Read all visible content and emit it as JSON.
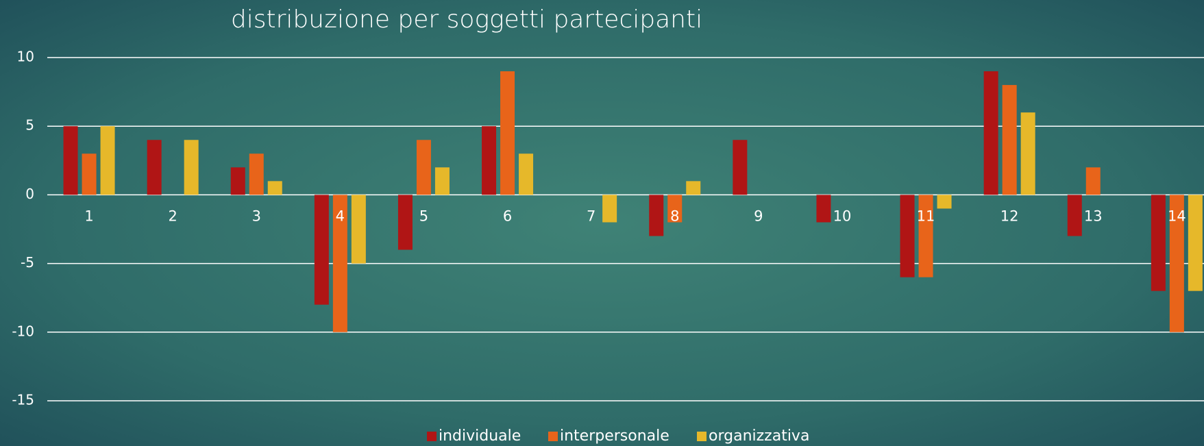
{
  "chart_data": {
    "type": "bar",
    "title": "distribuzione per soggetti partecipanti",
    "categories": [
      "1",
      "2",
      "3",
      "4",
      "5",
      "6",
      "7",
      "8",
      "9",
      "10",
      "11",
      "12",
      "13",
      "14"
    ],
    "series": [
      {
        "name": "individuale",
        "color": "#b01515",
        "values": [
          5,
          4,
          2,
          -8,
          -4,
          5,
          0,
          -3,
          4,
          -2,
          -6,
          9,
          -3,
          -7
        ]
      },
      {
        "name": "interpersonale",
        "color": "#e8641a",
        "values": [
          3,
          0,
          3,
          -10,
          4,
          9,
          0,
          -2,
          0,
          0,
          -6,
          8,
          2,
          -10
        ]
      },
      {
        "name": "organizzativa",
        "color": "#e6b82a",
        "values": [
          5,
          4,
          1,
          -5,
          2,
          3,
          -2,
          1,
          0,
          0,
          -1,
          6,
          0,
          -7
        ]
      }
    ],
    "ylim": [
      -15,
      10
    ],
    "yticks": [
      -15,
      -10,
      -5,
      0,
      5,
      10
    ],
    "grid": true,
    "legend": "bottom"
  }
}
